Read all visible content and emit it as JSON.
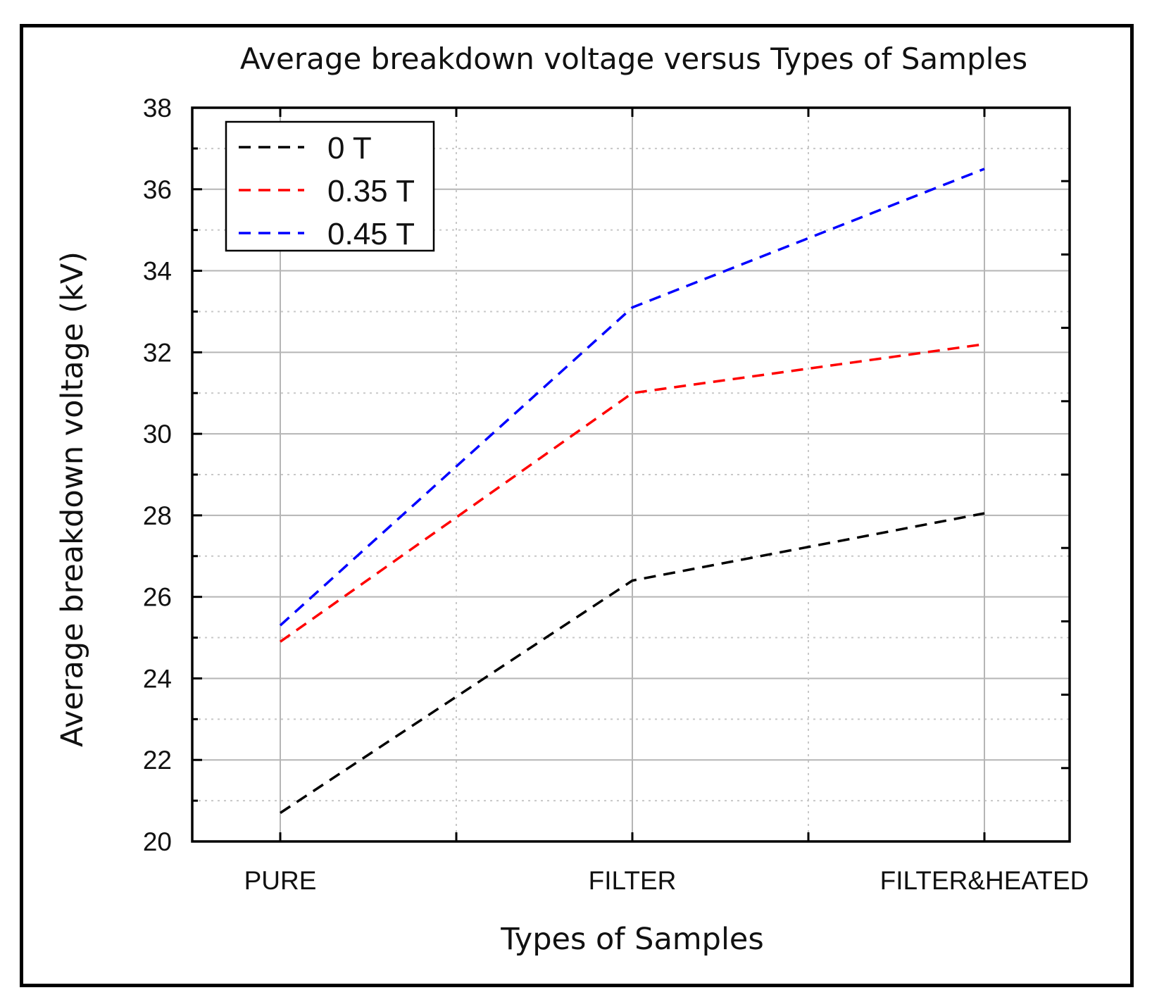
{
  "chart_data": {
    "type": "line",
    "title": "Average breakdown voltage versus Types of Samples",
    "xlabel": "Types of Samples",
    "ylabel": "Average breakdown voltage (kV)",
    "categories": [
      "PURE",
      "FILTER",
      "FILTER&HEATED"
    ],
    "ylim": [
      20,
      38
    ],
    "yticks": [
      "20",
      "22",
      "24",
      "26",
      "28",
      "30",
      "32",
      "34",
      "36",
      "38"
    ],
    "grid": true,
    "legend_position": "top-left",
    "series": [
      {
        "name": "0 T",
        "color": "#000000",
        "values": [
          20.7,
          26.4,
          28.05
        ]
      },
      {
        "name": "0.35 T",
        "color": "#ff0000",
        "values": [
          24.9,
          31.0,
          32.2
        ]
      },
      {
        "name": "0.45 T",
        "color": "#0000ff",
        "values": [
          25.3,
          33.1,
          36.5
        ]
      }
    ]
  }
}
